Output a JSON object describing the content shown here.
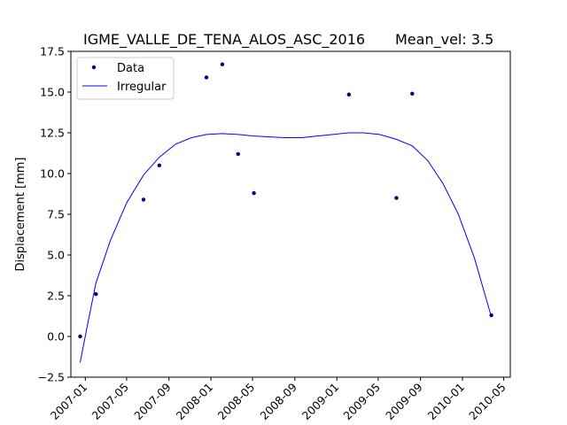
{
  "chart_data": {
    "type": "scatter",
    "title": "IGME_VALLE_DE_TENA_ALOS_ASC_2016",
    "mean_vel_label": "Mean_vel: 3.5",
    "xlabel": "",
    "ylabel": "Displacement [mm]",
    "xlim": [
      "2006-11-20",
      "2010-05-20"
    ],
    "ylim": [
      -2.5,
      17.5
    ],
    "x_ticks": [
      "2007-01",
      "2007-05",
      "2007-09",
      "2008-01",
      "2008-05",
      "2008-09",
      "2009-01",
      "2009-05",
      "2009-09",
      "2010-01",
      "2010-05"
    ],
    "y_ticks": [
      -2.5,
      0.0,
      2.5,
      5.0,
      7.5,
      10.0,
      12.5,
      15.0,
      17.5
    ],
    "y_tick_labels": [
      "−2.5",
      "0.0",
      "2.5",
      "5.0",
      "7.5",
      "10.0",
      "12.5",
      "15.0",
      "17.5"
    ],
    "grid": false,
    "legend_position": "top-left",
    "colors": {
      "data": "#000080",
      "irregular": "#0000ff"
    },
    "series": [
      {
        "name": "Data",
        "style": "markers",
        "x": [
          "2006-12-17",
          "2007-02-01",
          "2007-06-19",
          "2007-08-04",
          "2007-12-19",
          "2008-02-03",
          "2008-03-20",
          "2008-05-05",
          "2009-02-05",
          "2009-06-23",
          "2009-08-08",
          "2010-03-26"
        ],
        "y": [
          0.0,
          2.6,
          8.4,
          10.5,
          15.9,
          16.7,
          11.2,
          8.8,
          14.85,
          8.5,
          14.9,
          1.3
        ]
      },
      {
        "name": "Irregular",
        "style": "line",
        "x": [
          "2006-12-17",
          "2007-01-10",
          "2007-02-01",
          "2007-03-15",
          "2007-05-01",
          "2007-06-19",
          "2007-08-04",
          "2007-09-20",
          "2007-11-05",
          "2007-12-19",
          "2008-02-03",
          "2008-03-20",
          "2008-05-05",
          "2008-06-20",
          "2008-08-05",
          "2008-09-20",
          "2008-11-05",
          "2008-12-20",
          "2009-02-05",
          "2009-03-20",
          "2009-05-05",
          "2009-06-23",
          "2009-08-08",
          "2009-09-22",
          "2009-11-05",
          "2009-12-20",
          "2010-02-05",
          "2010-03-26"
        ],
        "y": [
          -1.6,
          1.0,
          3.3,
          5.9,
          8.2,
          9.9,
          11.0,
          11.8,
          12.2,
          12.4,
          12.45,
          12.4,
          12.3,
          12.25,
          12.2,
          12.2,
          12.3,
          12.4,
          12.5,
          12.5,
          12.4,
          12.1,
          11.7,
          10.8,
          9.4,
          7.5,
          4.8,
          1.2
        ]
      }
    ]
  }
}
